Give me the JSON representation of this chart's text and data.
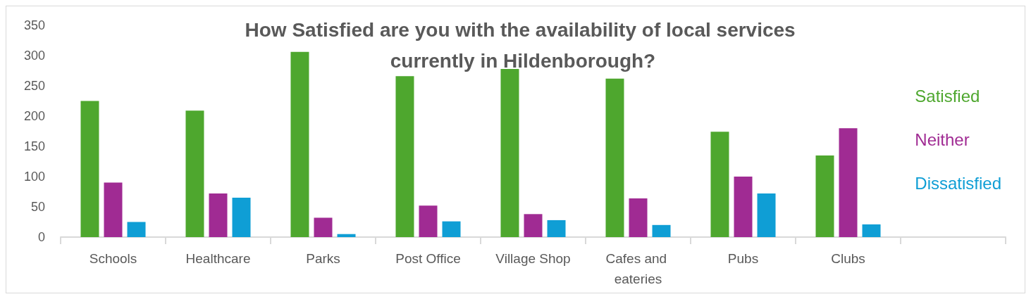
{
  "chart_data": {
    "type": "bar",
    "title": "How Satisfied are you with the availability of local services currently in Hildenborough?",
    "categories": [
      "Schools",
      "Healthcare",
      "Parks",
      "Post Office",
      "Village Shop",
      "Cafes and eateries",
      "Pubs",
      "Clubs",
      null
    ],
    "series": [
      {
        "name": "Satisfied",
        "color": "#4ea72e",
        "values": [
          225,
          209,
          306,
          266,
          278,
          262,
          174,
          135,
          null
        ]
      },
      {
        "name": "Neither",
        "color": "#a02b93",
        "values": [
          90,
          72,
          32,
          52,
          38,
          64,
          100,
          180,
          null
        ]
      },
      {
        "name": "Dissatisfied",
        "color": "#0f9ed5",
        "values": [
          25,
          65,
          5,
          26,
          28,
          20,
          72,
          21,
          null
        ]
      }
    ],
    "ylim": [
      0,
      350
    ],
    "yticks": [
      0,
      50,
      100,
      150,
      200,
      250,
      300,
      350
    ],
    "grid": false,
    "legend": "right"
  }
}
